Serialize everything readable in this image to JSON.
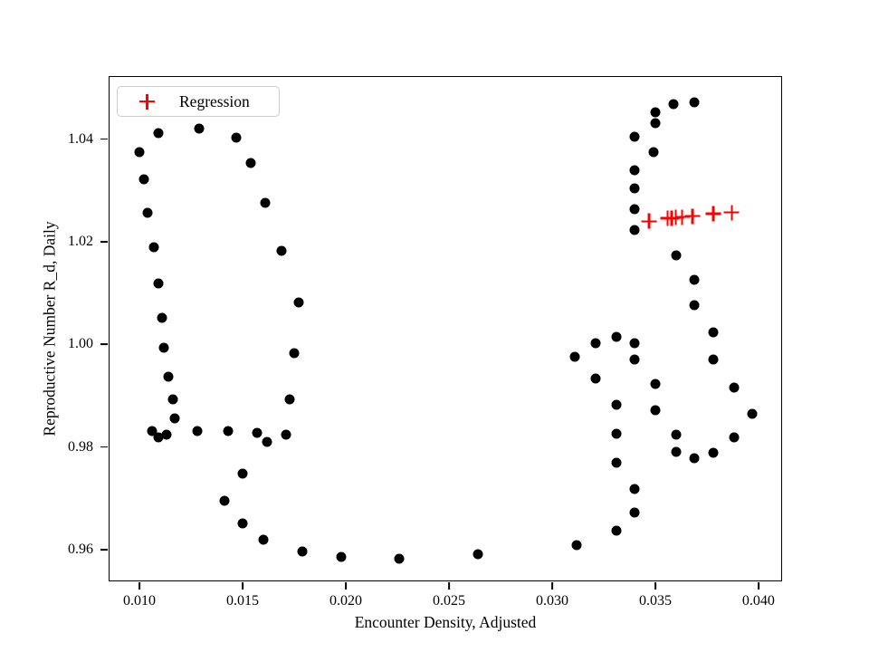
{
  "figure": {
    "background": "#ffffff"
  },
  "chart_data": {
    "type": "scatter",
    "title": "",
    "xlabel": "Encounter Density, Adjusted",
    "ylabel": "Reproductive Number R_d, Daily",
    "grid": false,
    "axes": {
      "xlim": [
        0.00855,
        0.0411
      ],
      "ylim": [
        0.954,
        1.0521
      ],
      "x_ticks": [
        {
          "value": 0.01,
          "label": "0.010"
        },
        {
          "value": 0.015,
          "label": "0.015"
        },
        {
          "value": 0.02,
          "label": "0.020"
        },
        {
          "value": 0.025,
          "label": "0.025"
        },
        {
          "value": 0.03,
          "label": "0.030"
        },
        {
          "value": 0.035,
          "label": "0.035"
        },
        {
          "value": 0.04,
          "label": "0.040"
        }
      ],
      "y_ticks": [
        {
          "value": 0.96,
          "label": "0.96"
        },
        {
          "value": 0.98,
          "label": "0.98"
        },
        {
          "value": 1.0,
          "label": "1.00"
        },
        {
          "value": 1.02,
          "label": "1.02"
        },
        {
          "value": 1.04,
          "label": "1.04"
        }
      ]
    },
    "legend": {
      "position": "upper-left",
      "label": "Regression",
      "marker": "plus",
      "marker_color": "#ff0000"
    },
    "series": [
      {
        "name": "observations",
        "marker": "circle",
        "color": "#000000",
        "points": [
          [
            0.01,
            1.0374
          ],
          [
            0.0109,
            1.0412
          ],
          [
            0.0129,
            1.0421
          ],
          [
            0.0147,
            1.0402
          ],
          [
            0.0154,
            1.0353
          ],
          [
            0.0161,
            1.0275
          ],
          [
            0.0169,
            1.0183
          ],
          [
            0.0177,
            1.0081
          ],
          [
            0.0175,
            0.9982
          ],
          [
            0.0173,
            0.9892
          ],
          [
            0.0171,
            0.9824
          ],
          [
            0.0102,
            1.0321
          ],
          [
            0.0104,
            1.0256
          ],
          [
            0.0107,
            1.0189
          ],
          [
            0.0109,
            1.0118
          ],
          [
            0.0111,
            1.0052
          ],
          [
            0.0112,
            0.9994
          ],
          [
            0.0114,
            0.9937
          ],
          [
            0.0116,
            0.9892
          ],
          [
            0.0117,
            0.9855
          ],
          [
            0.0106,
            0.9832
          ],
          [
            0.0109,
            0.9818
          ],
          [
            0.0113,
            0.9824
          ],
          [
            0.0128,
            0.9831
          ],
          [
            0.0143,
            0.9831
          ],
          [
            0.0157,
            0.9828
          ],
          [
            0.0162,
            0.981
          ],
          [
            0.015,
            0.9748
          ],
          [
            0.0141,
            0.9695
          ],
          [
            0.015,
            0.9651
          ],
          [
            0.016,
            0.9619
          ],
          [
            0.0179,
            0.9596
          ],
          [
            0.0198,
            0.9585
          ],
          [
            0.0226,
            0.9582
          ],
          [
            0.0264,
            0.9591
          ],
          [
            0.0312,
            0.9609
          ],
          [
            0.0331,
            0.9637
          ],
          [
            0.0311,
            0.9976
          ],
          [
            0.0321,
            1.0002
          ],
          [
            0.0331,
            1.0015
          ],
          [
            0.034,
            1.0003
          ],
          [
            0.034,
            0.997
          ],
          [
            0.0321,
            0.9934
          ],
          [
            0.0331,
            0.9882
          ],
          [
            0.035,
            0.9923
          ],
          [
            0.035,
            0.9871
          ],
          [
            0.0331,
            0.9825
          ],
          [
            0.0331,
            0.977
          ],
          [
            0.034,
            0.9719
          ],
          [
            0.034,
            0.9672
          ],
          [
            0.036,
            0.9824
          ],
          [
            0.036,
            0.979
          ],
          [
            0.0369,
            0.9778
          ],
          [
            0.0378,
            0.9788
          ],
          [
            0.0388,
            0.9819
          ],
          [
            0.0397,
            0.9865
          ],
          [
            0.0388,
            0.9916
          ],
          [
            0.0378,
            0.997
          ],
          [
            0.0378,
            1.0023
          ],
          [
            0.0369,
            1.0076
          ],
          [
            0.0369,
            1.0126
          ],
          [
            0.036,
            1.0174
          ],
          [
            0.034,
            1.0222
          ],
          [
            0.034,
            1.0263
          ],
          [
            0.034,
            1.0304
          ],
          [
            0.034,
            1.034
          ],
          [
            0.0349,
            1.0374
          ],
          [
            0.034,
            1.0404
          ],
          [
            0.035,
            1.0431
          ],
          [
            0.035,
            1.0452
          ],
          [
            0.0359,
            1.0468
          ],
          [
            0.0369,
            1.0471
          ]
        ]
      },
      {
        "name": "Regression",
        "marker": "plus",
        "color": "#ff0000",
        "points": [
          [
            0.0347,
            1.024
          ],
          [
            0.0356,
            1.0246
          ],
          [
            0.0358,
            1.0246
          ],
          [
            0.036,
            1.0247
          ],
          [
            0.0363,
            1.0248
          ],
          [
            0.0368,
            1.025
          ],
          [
            0.0378,
            1.0255
          ],
          [
            0.0387,
            1.0257
          ]
        ]
      }
    ]
  }
}
